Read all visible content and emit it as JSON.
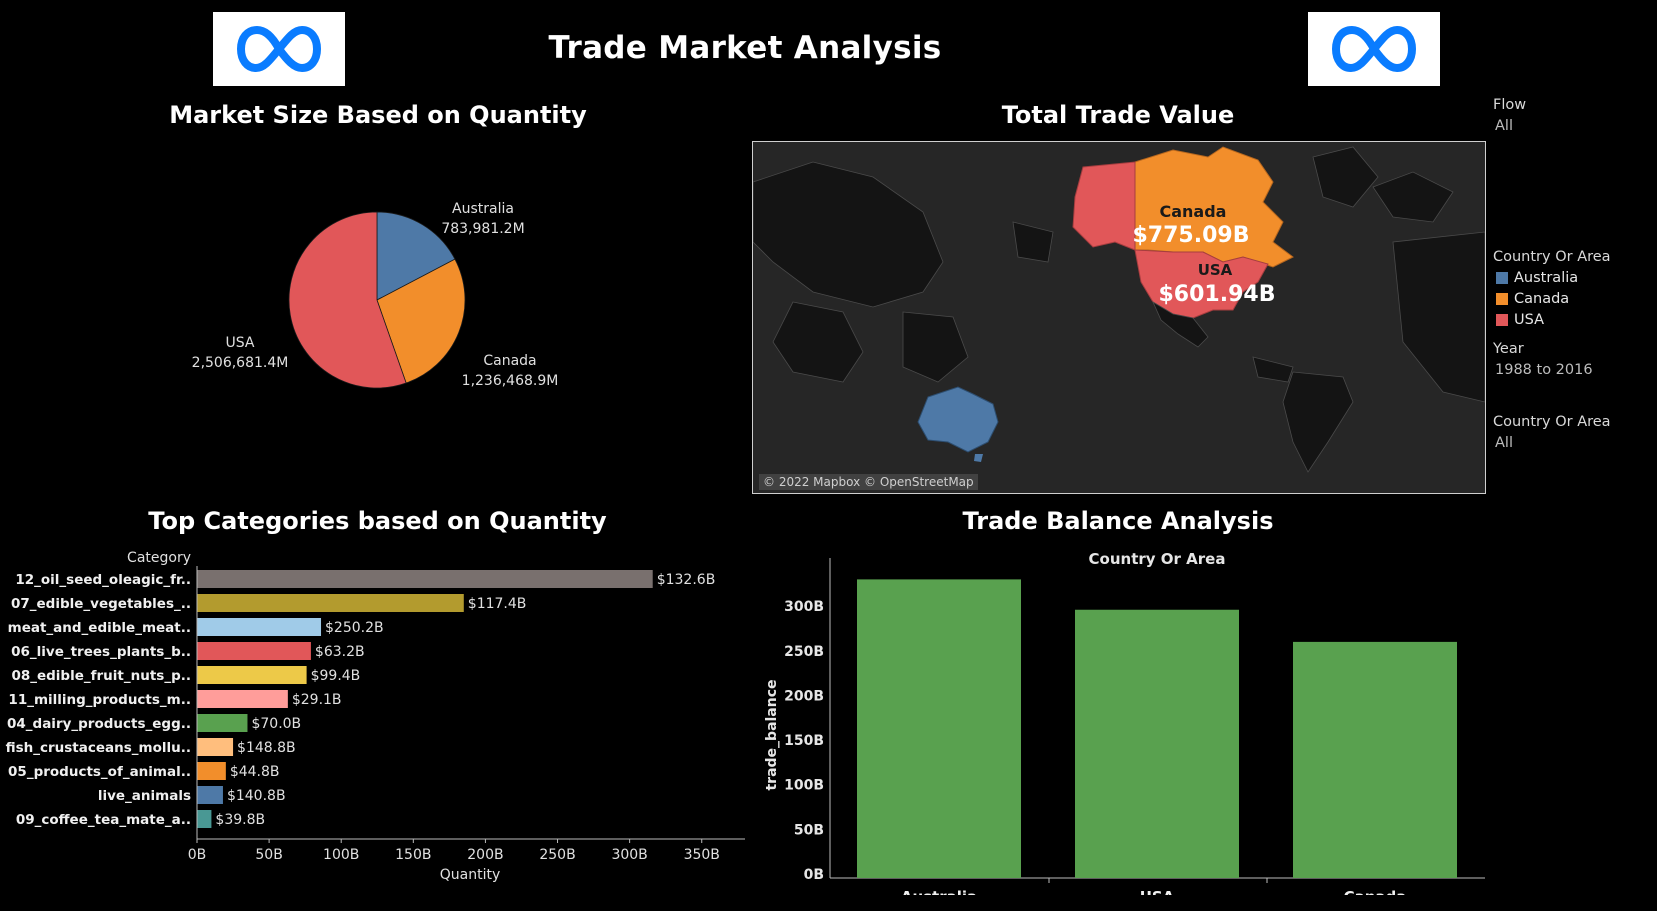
{
  "header": {
    "title": "Trade Market Analysis"
  },
  "logos": [
    {
      "icon": "meta-infinity-logo"
    },
    {
      "icon": "meta-infinity-logo"
    }
  ],
  "sections": {
    "pie_title": "Market Size Based on Quantity",
    "map_title": "Total Trade Value",
    "bar_title": "Top Categories based on Quantity",
    "balance_title": "Trade Balance Analysis"
  },
  "filters": {
    "flow_label": "Flow",
    "flow_value": "All",
    "legend_label": "Country Or Area",
    "legend_items": [
      {
        "name": "Australia",
        "color": "#4e79a7"
      },
      {
        "name": "Canada",
        "color": "#f28e2b"
      },
      {
        "name": "USA",
        "color": "#e15759"
      }
    ],
    "year_label": "Year",
    "year_value": "1988 to 2016",
    "country_label": "Country Or Area",
    "country_value": "All"
  },
  "map": {
    "credit": "© 2022 Mapbox © OpenStreetMap",
    "labels": [
      {
        "country": "Canada",
        "value": "$775.09B"
      },
      {
        "country": "USA",
        "value": "$601.94B"
      }
    ]
  },
  "chart_data": [
    {
      "type": "pie",
      "title": "Market Size Based on Quantity",
      "categories": [
        "Australia",
        "Canada",
        "USA"
      ],
      "values": [
        783981.2,
        1236468.9,
        2506681.4
      ],
      "labels": [
        "783,981.2M",
        "1,236,468.9M",
        "2,506,681.4M"
      ],
      "colors": [
        "#4e79a7",
        "#f28e2b",
        "#e15759"
      ]
    },
    {
      "type": "bar",
      "orientation": "horizontal",
      "title": "Top Categories based on Quantity",
      "ylabel": "Category",
      "xlabel": "Quantity",
      "categories": [
        "12_oil_seed_oleagic_fr..",
        "07_edible_vegetables_..",
        "meat_and_edible_meat..",
        "06_live_trees_plants_b..",
        "08_edible_fruit_nuts_p..",
        "11_milling_products_m..",
        "04_dairy_products_egg..",
        "fish_crustaceans_mollu..",
        "05_products_of_animal..",
        "live_animals",
        "09_coffee_tea_mate_a.."
      ],
      "values": [
        316,
        185,
        86,
        79,
        76,
        63,
        35,
        25,
        20,
        18,
        10
      ],
      "data_labels": [
        "$132.6B",
        "$117.4B",
        "$250.2B",
        "$63.2B",
        "$99.4B",
        "$29.1B",
        "$70.0B",
        "$148.8B",
        "$44.8B",
        "$140.8B",
        "$39.8B"
      ],
      "colors": [
        "#79706e",
        "#b39b2e",
        "#a0cbe8",
        "#e15759",
        "#edc948",
        "#ff9d9a",
        "#59a14f",
        "#ffbe7d",
        "#f28e2b",
        "#4e79a7",
        "#499894"
      ],
      "xlim": [
        0,
        380
      ],
      "xticks": [
        0,
        50,
        100,
        150,
        200,
        250,
        300,
        350
      ],
      "xtick_labels": [
        "0B",
        "50B",
        "100B",
        "150B",
        "200B",
        "250B",
        "300B",
        "350B"
      ]
    },
    {
      "type": "bar",
      "title": "Country Or Area",
      "ylabel": "trade_balance",
      "categories": [
        "Australia",
        "USA",
        "Canada"
      ],
      "values": [
        330,
        296,
        260
      ],
      "colors": [
        "#59a14f"
      ],
      "ylim": [
        0,
        345
      ],
      "yticks": [
        0,
        50,
        100,
        150,
        200,
        250,
        300
      ],
      "ytick_labels": [
        "0B",
        "50B",
        "100B",
        "150B",
        "200B",
        "250B",
        "300B"
      ]
    }
  ]
}
